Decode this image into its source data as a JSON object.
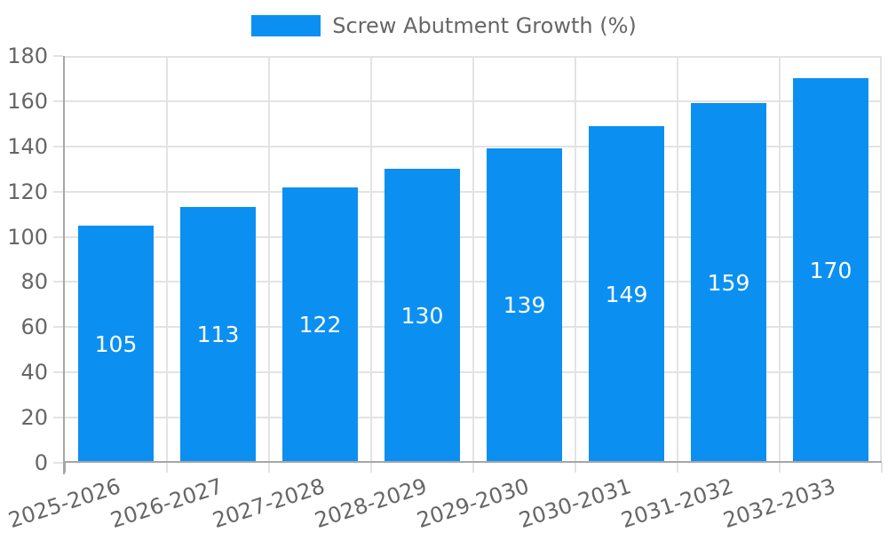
{
  "chart_data": {
    "type": "bar",
    "title": "Screw Abutment Growth (%)",
    "legend_position": "top",
    "categories": [
      "2025-2026",
      "2026-2027",
      "2027-2028",
      "2028-2029",
      "2029-2030",
      "2030-2031",
      "2031-2032",
      "2032-2033"
    ],
    "values": [
      105,
      113,
      122,
      130,
      139,
      149,
      159,
      170
    ],
    "value_labels": [
      "105",
      "113",
      "122",
      "130",
      "139",
      "149",
      "159",
      "170"
    ],
    "ylim": [
      0,
      180
    ],
    "y_ticks": [
      0,
      20,
      40,
      60,
      80,
      100,
      120,
      140,
      160,
      180
    ],
    "grid": true,
    "x_label_rotation_deg": -18,
    "colors": {
      "bar": "#0b90f2",
      "value_label": "#ffffff",
      "tick_label": "#666666",
      "axis_line": "#a6a6a6",
      "grid_line": "#e3e3e3",
      "background": "#ffffff"
    }
  }
}
